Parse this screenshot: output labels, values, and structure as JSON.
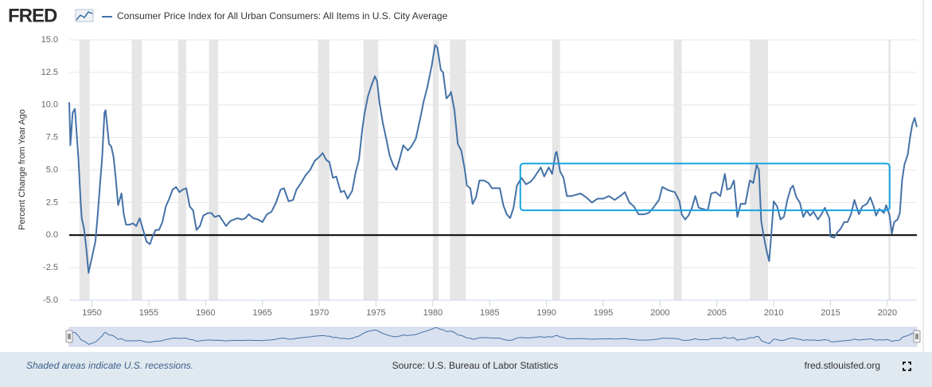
{
  "chart_data": {
    "type": "line",
    "logo": "FRED",
    "ylabel": "Percent Change from Year Ago",
    "note": "Shaded areas indicate U.S. recessions.",
    "source": "Source: U.S. Bureau of Labor Statistics",
    "site": "fred.stlouisfed.org",
    "xlim": [
      1948,
      2022.6
    ],
    "ylim": [
      -5,
      15
    ],
    "yticks": [
      {
        "value": -5,
        "label": "-5.0"
      },
      {
        "value": -2.5,
        "label": "-2.5"
      },
      {
        "value": 0,
        "label": "0.0"
      },
      {
        "value": 2.5,
        "label": "2.5"
      },
      {
        "value": 5,
        "label": "5.0"
      },
      {
        "value": 7.5,
        "label": "7.5"
      },
      {
        "value": 10,
        "label": "10.0"
      },
      {
        "value": 12.5,
        "label": "12.5"
      },
      {
        "value": 15,
        "label": "15.0"
      }
    ],
    "xticks": [
      1950,
      1955,
      1960,
      1965,
      1970,
      1975,
      1980,
      1985,
      1990,
      1995,
      2000,
      2005,
      2010,
      2015,
      2020
    ],
    "grid": true,
    "recessions": [
      [
        1948.9,
        1949.8
      ],
      [
        1953.5,
        1954.4
      ],
      [
        1957.6,
        1958.3
      ],
      [
        1960.3,
        1961.1
      ],
      [
        1969.9,
        1970.9
      ],
      [
        1973.9,
        1975.2
      ],
      [
        1980.0,
        1980.5
      ],
      [
        1981.5,
        1982.9
      ],
      [
        1990.5,
        1991.2
      ],
      [
        2001.2,
        2001.9
      ],
      [
        2007.9,
        2009.5
      ],
      [
        2020.1,
        2020.3
      ]
    ],
    "highlight": {
      "x": [
        1987.7,
        2020.2
      ],
      "y": [
        1.9,
        5.5
      ],
      "color": "#1aa3e0"
    },
    "x": [
      1948.0,
      1948.1,
      1948.3,
      1948.5,
      1948.8,
      1949.0,
      1949.1,
      1949.3,
      1949.5,
      1949.7,
      1949.9,
      1950.1,
      1950.3,
      1950.5,
      1950.7,
      1950.9,
      1951.1,
      1951.2,
      1951.5,
      1951.7,
      1951.9,
      1952.1,
      1952.3,
      1952.6,
      1952.8,
      1953.0,
      1953.3,
      1953.6,
      1953.9,
      1954.2,
      1954.5,
      1954.8,
      1955.1,
      1955.3,
      1955.6,
      1955.9,
      1956.2,
      1956.5,
      1956.8,
      1957.1,
      1957.4,
      1957.7,
      1958.0,
      1958.3,
      1958.6,
      1958.9,
      1959.2,
      1959.5,
      1959.8,
      1960.2,
      1960.5,
      1960.8,
      1961.2,
      1961.5,
      1961.8,
      1962.2,
      1962.5,
      1962.8,
      1963.2,
      1963.5,
      1963.8,
      1964.2,
      1964.6,
      1965.0,
      1965.4,
      1965.8,
      1966.2,
      1966.6,
      1966.9,
      1967.3,
      1967.7,
      1968.0,
      1968.4,
      1968.8,
      1969.2,
      1969.6,
      1970.0,
      1970.3,
      1970.6,
      1970.9,
      1971.2,
      1971.5,
      1971.9,
      1972.2,
      1972.5,
      1972.9,
      1973.2,
      1973.5,
      1973.8,
      1974.0,
      1974.3,
      1974.6,
      1974.9,
      1975.1,
      1975.3,
      1975.6,
      1975.9,
      1976.2,
      1976.5,
      1976.8,
      1977.1,
      1977.4,
      1977.8,
      1978.1,
      1978.5,
      1978.9,
      1979.2,
      1979.5,
      1979.9,
      1980.2,
      1980.4,
      1980.7,
      1980.9,
      1981.2,
      1981.5,
      1981.6,
      1981.9,
      1982.2,
      1982.5,
      1982.8,
      1983.0,
      1983.3,
      1983.5,
      1983.8,
      1984.1,
      1984.5,
      1984.9,
      1985.2,
      1985.5,
      1985.9,
      1986.2,
      1986.5,
      1986.8,
      1987.1,
      1987.4,
      1987.8,
      1988.2,
      1988.6,
      1988.9,
      1989.2,
      1989.5,
      1989.8,
      1990.2,
      1990.5,
      1990.8,
      1990.9,
      1991.2,
      1991.5,
      1991.8,
      1992.2,
      1992.6,
      1993.0,
      1993.5,
      1994.0,
      1994.5,
      1995.0,
      1995.5,
      1996.0,
      1996.5,
      1996.9,
      1997.3,
      1997.7,
      1998.1,
      1998.6,
      1999.0,
      1999.4,
      1999.9,
      2000.2,
      2000.6,
      2000.9,
      2001.3,
      2001.7,
      2001.9,
      2002.2,
      2002.5,
      2002.8,
      2003.1,
      2003.4,
      2003.8,
      2004.2,
      2004.5,
      2004.9,
      2005.3,
      2005.7,
      2005.9,
      2006.2,
      2006.5,
      2006.8,
      2007.1,
      2007.5,
      2007.9,
      2008.2,
      2008.5,
      2008.7,
      2008.9,
      2009.1,
      2009.4,
      2009.6,
      2009.8,
      2010.0,
      2010.3,
      2010.6,
      2010.9,
      2011.2,
      2011.5,
      2011.7,
      2012.0,
      2012.3,
      2012.6,
      2012.9,
      2013.2,
      2013.5,
      2013.9,
      2014.2,
      2014.5,
      2014.9,
      2015.0,
      2015.3,
      2015.6,
      2015.9,
      2016.2,
      2016.5,
      2016.8,
      2017.1,
      2017.5,
      2017.8,
      2018.2,
      2018.5,
      2018.8,
      2019.0,
      2019.3,
      2019.7,
      2019.9,
      2020.2,
      2020.4,
      2020.6,
      2020.9,
      2021.1,
      2021.3,
      2021.5,
      2021.8,
      2022.0,
      2022.2,
      2022.4,
      2022.6
    ],
    "series": [
      {
        "name": "Consumer Price Index for All Urban Consumers: All Items in U.S. City Average",
        "color": "#4572a7",
        "values": [
          10.2,
          6.9,
          9.4,
          9.7,
          6.0,
          2.6,
          1.3,
          0.5,
          -1.0,
          -2.9,
          -2.1,
          -1.3,
          -0.5,
          1.5,
          3.8,
          6.0,
          9.4,
          9.6,
          7.0,
          6.8,
          6.0,
          4.3,
          2.3,
          3.2,
          1.6,
          0.8,
          0.8,
          0.9,
          0.7,
          1.3,
          0.4,
          -0.5,
          -0.7,
          -0.2,
          0.4,
          0.4,
          1.0,
          2.2,
          2.8,
          3.5,
          3.7,
          3.3,
          3.5,
          3.6,
          2.2,
          1.9,
          0.4,
          0.7,
          1.5,
          1.7,
          1.7,
          1.4,
          1.5,
          1.1,
          0.7,
          1.1,
          1.2,
          1.3,
          1.2,
          1.3,
          1.6,
          1.3,
          1.2,
          1.0,
          1.6,
          1.8,
          2.5,
          3.5,
          3.6,
          2.6,
          2.7,
          3.5,
          4.0,
          4.6,
          5.0,
          5.7,
          6.0,
          6.3,
          5.8,
          5.6,
          4.4,
          4.5,
          3.3,
          3.4,
          2.8,
          3.4,
          4.8,
          5.8,
          8.2,
          9.4,
          10.7,
          11.5,
          12.2,
          11.8,
          10.2,
          8.6,
          7.4,
          6.1,
          5.4,
          5.0,
          5.9,
          6.9,
          6.5,
          6.8,
          7.4,
          9.0,
          10.3,
          11.3,
          13.0,
          14.6,
          14.4,
          12.7,
          12.5,
          10.5,
          10.8,
          11.0,
          9.6,
          7.0,
          6.5,
          5.1,
          3.8,
          3.6,
          2.4,
          2.9,
          4.2,
          4.2,
          4.0,
          3.6,
          3.6,
          3.6,
          2.3,
          1.6,
          1.3,
          2.1,
          3.8,
          4.4,
          3.9,
          4.1,
          4.4,
          4.8,
          5.2,
          4.5,
          5.2,
          4.7,
          6.3,
          6.4,
          4.9,
          4.4,
          3.0,
          3.0,
          3.1,
          3.2,
          2.9,
          2.5,
          2.8,
          2.8,
          3.0,
          2.7,
          3.0,
          3.3,
          2.5,
          2.2,
          1.6,
          1.6,
          1.7,
          2.1,
          2.7,
          3.7,
          3.5,
          3.4,
          3.3,
          2.6,
          1.6,
          1.2,
          1.5,
          2.1,
          3.0,
          2.1,
          2.0,
          1.9,
          3.2,
          3.3,
          3.0,
          4.7,
          3.5,
          3.6,
          4.2,
          1.4,
          2.4,
          2.4,
          4.2,
          4.0,
          5.4,
          5.0,
          1.1,
          0.0,
          -1.3,
          -2.0,
          0.2,
          2.6,
          2.2,
          1.2,
          1.4,
          2.7,
          3.6,
          3.8,
          2.9,
          2.5,
          1.4,
          1.9,
          1.5,
          1.8,
          1.2,
          1.6,
          2.1,
          1.3,
          -0.1,
          -0.2,
          0.2,
          0.5,
          1.0,
          1.0,
          1.6,
          2.7,
          1.6,
          2.2,
          2.4,
          2.9,
          2.2,
          1.5,
          2.0,
          1.7,
          2.3,
          1.5,
          0.1,
          1.0,
          1.2,
          1.7,
          4.2,
          5.4,
          6.2,
          7.5,
          8.5,
          9.0,
          8.3
        ]
      }
    ]
  }
}
